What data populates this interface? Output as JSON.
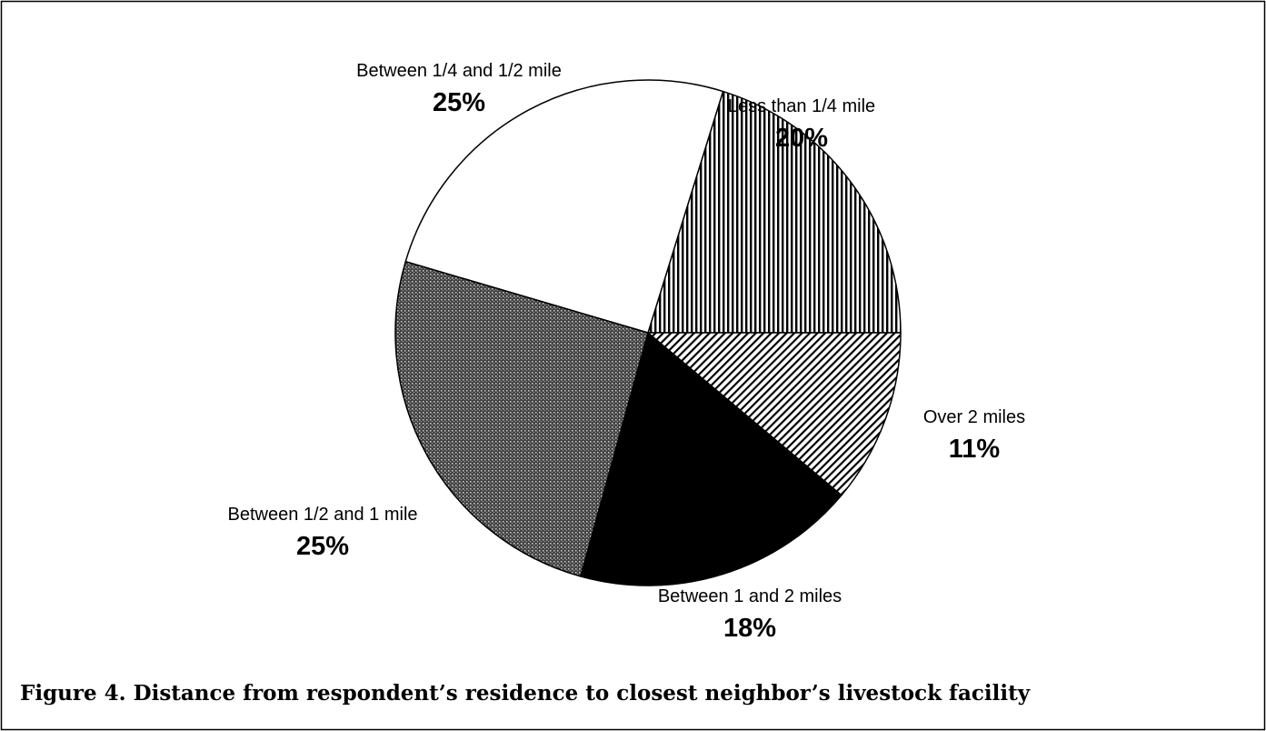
{
  "chart_data": {
    "type": "pie",
    "caption": "Figure 4. Distance from respondent’s residence to closest neighbor’s livestock facility",
    "categories": [
      "Less than 1/4 mile",
      "Between 1/4 and 1/2 mile",
      "Between 1/2 and 1 mile",
      "Between 1 and 2 miles",
      "Over 2 miles"
    ],
    "values": [
      20,
      25,
      25,
      18,
      11
    ],
    "value_labels": [
      "20%",
      "25%",
      "25%",
      "18%",
      "11%"
    ],
    "fills": [
      "vertical-lines",
      "white",
      "dots",
      "black",
      "diagonal-lines"
    ]
  }
}
